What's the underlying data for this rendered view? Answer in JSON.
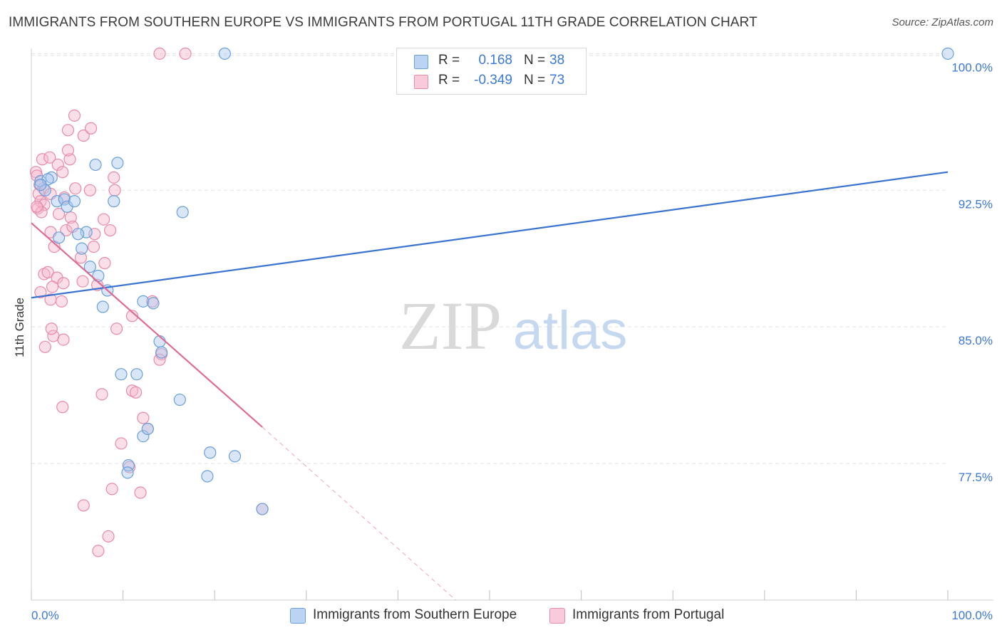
{
  "title": "IMMIGRANTS FROM SOUTHERN EUROPE VS IMMIGRANTS FROM PORTUGAL 11TH GRADE CORRELATION CHART",
  "source": "Source: ZipAtlas.com",
  "watermark": {
    "zip": "ZIP",
    "atlas": "atlas"
  },
  "legend": [
    {
      "r_label": "R =",
      "r_value": "0.168",
      "n_label": "N =",
      "n_value": "38"
    },
    {
      "r_label": "R =",
      "r_value": "-0.349",
      "n_label": "N =",
      "n_value": "73"
    }
  ],
  "colors": {
    "blue_fill": "#a8c8f0",
    "blue_stroke": "#6a9fd8",
    "blue_line": "#3a74d0",
    "pink_fill": "#f6b8cc",
    "pink_stroke": "#e88aa8",
    "pink_line": "#e06b93",
    "tick_text": "#3b78d8",
    "grid": "#e2e2e2"
  },
  "chart_data": {
    "type": "scatter",
    "title": "IMMIGRANTS FROM SOUTHERN EUROPE VS IMMIGRANTS FROM PORTUGAL 11TH GRADE CORRELATION CHART",
    "xlabel": "",
    "ylabel": "11th Grade",
    "xlim": [
      0,
      100
    ],
    "ylim": [
      70.0,
      100.6
    ],
    "x_tick_labels": [
      "0.0%",
      "100.0%"
    ],
    "y_ticks": [
      {
        "value": 100.0,
        "label": "100.0%"
      },
      {
        "value": 92.5,
        "label": "92.5%"
      },
      {
        "value": 85.0,
        "label": "85.0%"
      },
      {
        "value": 77.5,
        "label": "77.5%"
      }
    ],
    "series": [
      {
        "name": "Immigrants from Southern Europe",
        "color": "blue",
        "points": [
          [
            1.0,
            93.0
          ],
          [
            1.5,
            92.5
          ],
          [
            2.2,
            93.2
          ],
          [
            1.8,
            93.1
          ],
          [
            2.8,
            91.9
          ],
          [
            3.6,
            92.0
          ],
          [
            3.9,
            91.6
          ],
          [
            4.7,
            91.9
          ],
          [
            3.0,
            89.9
          ],
          [
            6.0,
            90.2
          ],
          [
            5.1,
            90.1
          ],
          [
            5.5,
            89.3
          ],
          [
            6.4,
            88.3
          ],
          [
            7.3,
            87.8
          ],
          [
            8.3,
            87.0
          ],
          [
            7.8,
            86.1
          ],
          [
            7.0,
            93.9
          ],
          [
            9.4,
            94.0
          ],
          [
            9.0,
            91.9
          ],
          [
            12.2,
            86.4
          ],
          [
            13.3,
            86.3
          ],
          [
            14.0,
            84.2
          ],
          [
            14.2,
            83.6
          ],
          [
            16.5,
            91.3
          ],
          [
            9.8,
            82.4
          ],
          [
            11.5,
            82.4
          ],
          [
            16.2,
            81.0
          ],
          [
            12.2,
            79.0
          ],
          [
            12.7,
            79.4
          ],
          [
            10.6,
            77.4
          ],
          [
            10.5,
            77.0
          ],
          [
            19.5,
            78.1
          ],
          [
            22.2,
            77.9
          ],
          [
            19.2,
            76.8
          ],
          [
            25.2,
            75.0
          ],
          [
            21.1,
            100.0
          ],
          [
            100.0,
            100.0
          ],
          [
            1.0,
            92.8
          ]
        ]
      },
      {
        "name": "Immigrants from Portugal",
        "color": "pink",
        "points": [
          [
            0.5,
            93.5
          ],
          [
            0.6,
            93.3
          ],
          [
            0.9,
            92.8
          ],
          [
            1.3,
            92.6
          ],
          [
            0.8,
            92.3
          ],
          [
            1.0,
            91.9
          ],
          [
            1.4,
            91.7
          ],
          [
            0.7,
            91.5
          ],
          [
            1.1,
            91.3
          ],
          [
            2.1,
            92.3
          ],
          [
            1.2,
            94.2
          ],
          [
            2.0,
            94.3
          ],
          [
            2.9,
            93.9
          ],
          [
            3.4,
            93.5
          ],
          [
            4.2,
            94.2
          ],
          [
            4.0,
            94.7
          ],
          [
            4.0,
            95.8
          ],
          [
            4.7,
            96.6
          ],
          [
            5.7,
            95.5
          ],
          [
            6.5,
            95.9
          ],
          [
            3.0,
            91.2
          ],
          [
            3.6,
            92.1
          ],
          [
            4.8,
            92.6
          ],
          [
            6.4,
            92.5
          ],
          [
            9.0,
            93.2
          ],
          [
            9.1,
            92.5
          ],
          [
            4.3,
            91.0
          ],
          [
            7.9,
            90.9
          ],
          [
            2.1,
            90.2
          ],
          [
            3.8,
            90.3
          ],
          [
            4.5,
            90.5
          ],
          [
            6.9,
            90.1
          ],
          [
            8.6,
            90.3
          ],
          [
            2.5,
            89.4
          ],
          [
            6.8,
            89.4
          ],
          [
            5.4,
            88.8
          ],
          [
            1.4,
            87.9
          ],
          [
            1.8,
            88.0
          ],
          [
            2.8,
            87.7
          ],
          [
            3.5,
            87.4
          ],
          [
            2.3,
            87.2
          ],
          [
            5.6,
            87.5
          ],
          [
            8.0,
            88.5
          ],
          [
            7.2,
            87.3
          ],
          [
            1.0,
            86.9
          ],
          [
            2.1,
            86.5
          ],
          [
            3.3,
            86.4
          ],
          [
            11.0,
            85.6
          ],
          [
            9.3,
            84.9
          ],
          [
            2.4,
            84.5
          ],
          [
            2.2,
            84.9
          ],
          [
            3.5,
            84.3
          ],
          [
            1.5,
            83.9
          ],
          [
            13.2,
            86.4
          ],
          [
            14.2,
            83.5
          ],
          [
            14.0,
            83.2
          ],
          [
            11.0,
            81.5
          ],
          [
            11.4,
            81.4
          ],
          [
            7.7,
            81.3
          ],
          [
            3.4,
            80.6
          ],
          [
            12.2,
            80.0
          ],
          [
            12.7,
            79.4
          ],
          [
            9.8,
            78.6
          ],
          [
            10.7,
            77.3
          ],
          [
            8.8,
            76.1
          ],
          [
            11.9,
            75.9
          ],
          [
            5.7,
            75.2
          ],
          [
            8.4,
            73.5
          ],
          [
            7.3,
            72.7
          ],
          [
            25.2,
            75.0
          ],
          [
            14.0,
            100.0
          ],
          [
            16.8,
            100.0
          ],
          [
            0.6,
            91.6
          ]
        ]
      }
    ],
    "trendlines": [
      {
        "series": "Immigrants from Southern Europe",
        "style": "solid",
        "from": [
          0,
          86.6
        ],
        "to": [
          100,
          93.5
        ]
      },
      {
        "series": "Immigrants from Portugal",
        "style": "solid",
        "from": [
          0,
          90.7
        ],
        "to": [
          25.2,
          79.5
        ]
      },
      {
        "series": "Immigrants from Portugal",
        "style": "dashed",
        "from": [
          25.2,
          79.5
        ],
        "to": [
          46.3,
          70.0
        ]
      }
    ]
  },
  "bottom_legend": [
    {
      "label": "Immigrants from Southern Europe",
      "color": "blue"
    },
    {
      "label": "Immigrants from Portugal",
      "color": "pink"
    }
  ]
}
